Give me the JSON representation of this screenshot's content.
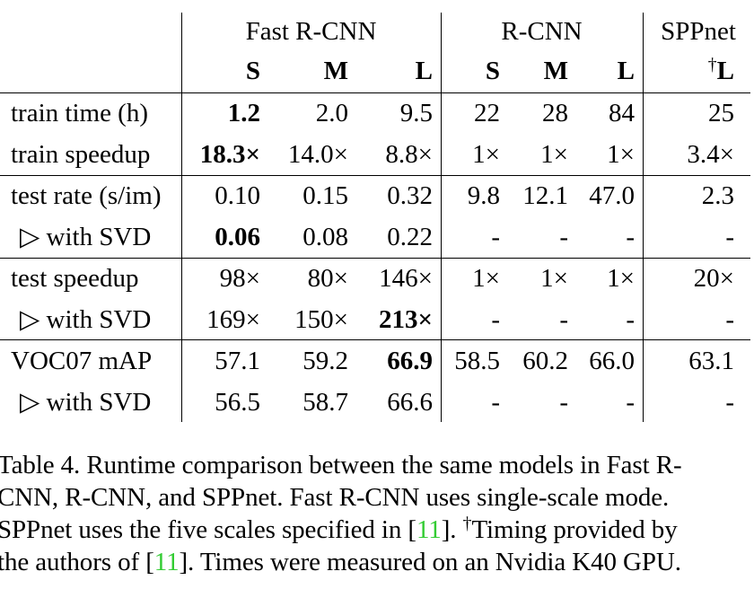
{
  "table": {
    "groups": [
      "Fast R-CNN",
      "R-CNN",
      "SPPnet"
    ],
    "subheaders": [
      "S",
      "M",
      "L",
      "S",
      "M",
      "L",
      "L"
    ],
    "sppnet_dagger": "†",
    "rows": [
      {
        "label": "train time (h)",
        "cells": [
          "1.2",
          "2.0",
          "9.5",
          "22",
          "28",
          "84",
          "25"
        ],
        "bold": [
          true,
          false,
          false,
          false,
          false,
          false,
          false
        ]
      },
      {
        "label": "train speedup",
        "cells": [
          "18.3×",
          "14.0×",
          "8.8×",
          "1×",
          "1×",
          "1×",
          "3.4×"
        ],
        "bold": [
          true,
          false,
          false,
          false,
          false,
          false,
          false
        ]
      },
      {
        "label": "test rate (s/im)",
        "cells": [
          "0.10",
          "0.15",
          "0.32",
          "9.8",
          "12.1",
          "47.0",
          "2.3"
        ],
        "bold": [
          false,
          false,
          false,
          false,
          false,
          false,
          false
        ]
      },
      {
        "label": "▷ with SVD",
        "cells": [
          "0.06",
          "0.08",
          "0.22",
          "-",
          "-",
          "-",
          "-"
        ],
        "bold": [
          true,
          false,
          false,
          false,
          false,
          false,
          false
        ]
      },
      {
        "label": "test speedup",
        "cells": [
          "98×",
          "80×",
          "146×",
          "1×",
          "1×",
          "1×",
          "20×"
        ],
        "bold": [
          false,
          false,
          false,
          false,
          false,
          false,
          false
        ]
      },
      {
        "label": "▷ with SVD",
        "cells": [
          "169×",
          "150×",
          "213×",
          "-",
          "-",
          "-",
          "-"
        ],
        "bold": [
          false,
          false,
          true,
          false,
          false,
          false,
          false
        ]
      },
      {
        "label": "VOC07 mAP",
        "cells": [
          "57.1",
          "59.2",
          "66.9",
          "58.5",
          "60.2",
          "66.0",
          "63.1"
        ],
        "bold": [
          false,
          false,
          true,
          false,
          false,
          false,
          false
        ]
      },
      {
        "label": "▷ with SVD",
        "cells": [
          "56.5",
          "58.7",
          "66.6",
          "-",
          "-",
          "-",
          "-"
        ],
        "bold": [
          false,
          false,
          false,
          false,
          false,
          false,
          false
        ]
      }
    ]
  },
  "caption": {
    "line1": "Table 4. Runtime comparison between the same models in Fast R-",
    "line2": "CNN, R-CNN, and SPPnet. Fast R-CNN uses single-scale mode.",
    "line3_a": "SPPnet uses the five scales specified in [",
    "ref": "11",
    "line3_b": "]. ",
    "dagger": "†",
    "line3_c": "Timing provided by",
    "line4_a": "the authors of [",
    "line4_b": "]. Times were measured on an Nvidia K40 GPU."
  }
}
